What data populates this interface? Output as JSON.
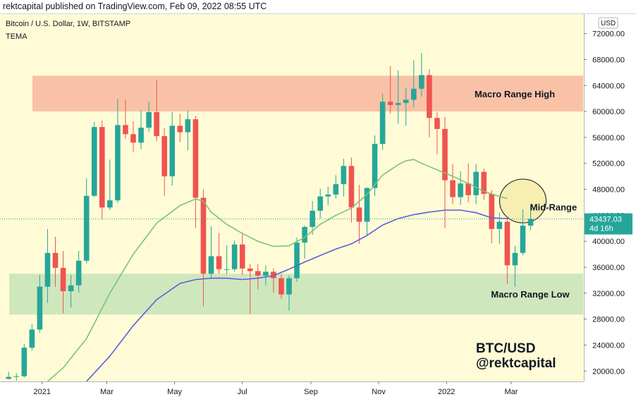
{
  "header": {
    "publisher_line": "rektcapital published on TradingView.com, Feb 09, 2022 08:55 UTC"
  },
  "legend": {
    "symbol_line": "Bitcoin / U.S. Dollar, 1W, BITSTAMP",
    "indicator": "TEMA"
  },
  "currency_button": "USD",
  "price_tag": {
    "price": "43437.03",
    "countdown": "4d 16h"
  },
  "watermark": {
    "line1": "BTC/USD",
    "line2": "@rektcapital"
  },
  "colors": {
    "background": "#fffbd6",
    "up": "#26a69a",
    "down": "#ef5350",
    "macro_high_zone": "#f9c2a6",
    "macro_low_zone": "#cfe7bd",
    "mid_range_circle": "#f5e9a6",
    "tema_fast": "#7dc27a",
    "tema_slow": "#5b5fe0",
    "price_tag": "#26a69a"
  },
  "chart_data": {
    "type": "candlestick",
    "interval": "1W",
    "ylim": [
      18400,
      75000
    ],
    "y_ticks": [
      20000,
      24000,
      28000,
      32000,
      36000,
      40000,
      44000,
      48000,
      52000,
      56000,
      60000,
      64000,
      68000,
      72000
    ],
    "y_tick_labels": [
      "20000.00",
      "24000.00",
      "28000.00",
      "32000.00",
      "36000.00",
      "40000.00",
      "44000.00",
      "48000.00",
      "52000.00",
      "56000.00",
      "60000.00",
      "64000.00",
      "68000.00",
      "72000.00"
    ],
    "x_labels": [
      {
        "label": "2021",
        "week": 4.3
      },
      {
        "label": "Mar",
        "week": 12.6
      },
      {
        "label": "May",
        "week": 21.3
      },
      {
        "label": "Jul",
        "week": 30.0
      },
      {
        "label": "Sep",
        "week": 38.8
      },
      {
        "label": "Nov",
        "week": 47.5
      },
      {
        "label": "2022",
        "week": 56.2
      },
      {
        "label": "Mar",
        "week": 64.5
      }
    ],
    "candles": [
      {
        "o": 18800,
        "h": 19900,
        "l": 18700,
        "c": 19100
      },
      {
        "o": 19100,
        "h": 19700,
        "l": 18500,
        "c": 19200
      },
      {
        "o": 19200,
        "h": 24200,
        "l": 19000,
        "c": 23600
      },
      {
        "o": 23600,
        "h": 27200,
        "l": 23200,
        "c": 26400
      },
      {
        "o": 26400,
        "h": 34800,
        "l": 25900,
        "c": 33000
      },
      {
        "o": 33000,
        "h": 41900,
        "l": 30500,
        "c": 38200
      },
      {
        "o": 38200,
        "h": 40700,
        "l": 33000,
        "c": 35900
      },
      {
        "o": 35900,
        "h": 38500,
        "l": 28900,
        "c": 32300
      },
      {
        "o": 32300,
        "h": 34800,
        "l": 29800,
        "c": 33200
      },
      {
        "o": 33200,
        "h": 38500,
        "l": 32100,
        "c": 37000
      },
      {
        "o": 37000,
        "h": 49700,
        "l": 36600,
        "c": 47000
      },
      {
        "o": 47000,
        "h": 58400,
        "l": 46800,
        "c": 57600
      },
      {
        "o": 57600,
        "h": 58600,
        "l": 43300,
        "c": 45200
      },
      {
        "o": 45200,
        "h": 52600,
        "l": 44800,
        "c": 46300
      },
      {
        "o": 46300,
        "h": 62000,
        "l": 45900,
        "c": 57900
      },
      {
        "o": 57900,
        "h": 61800,
        "l": 55800,
        "c": 56500
      },
      {
        "o": 56500,
        "h": 58500,
        "l": 53800,
        "c": 55200
      },
      {
        "o": 55200,
        "h": 60200,
        "l": 54200,
        "c": 57500
      },
      {
        "o": 57500,
        "h": 61500,
        "l": 56800,
        "c": 59900
      },
      {
        "o": 59900,
        "h": 64900,
        "l": 55400,
        "c": 56200
      },
      {
        "o": 56200,
        "h": 57400,
        "l": 47000,
        "c": 50000
      },
      {
        "o": 50000,
        "h": 59900,
        "l": 48600,
        "c": 57800
      },
      {
        "o": 57800,
        "h": 59600,
        "l": 55300,
        "c": 56800
      },
      {
        "o": 56800,
        "h": 60100,
        "l": 54000,
        "c": 58800
      },
      {
        "o": 58800,
        "h": 59300,
        "l": 42000,
        "c": 46700
      },
      {
        "o": 46700,
        "h": 48000,
        "l": 30000,
        "c": 35000
      },
      {
        "o": 35000,
        "h": 42300,
        "l": 34300,
        "c": 37700
      },
      {
        "o": 37700,
        "h": 41300,
        "l": 35000,
        "c": 35700
      },
      {
        "o": 35700,
        "h": 39400,
        "l": 34900,
        "c": 35700
      },
      {
        "o": 35700,
        "h": 40100,
        "l": 35300,
        "c": 39500
      },
      {
        "o": 39500,
        "h": 41300,
        "l": 34800,
        "c": 35800
      },
      {
        "o": 35800,
        "h": 36500,
        "l": 28800,
        "c": 35400
      },
      {
        "o": 35400,
        "h": 36500,
        "l": 32600,
        "c": 34700
      },
      {
        "o": 34700,
        "h": 36300,
        "l": 33200,
        "c": 35300
      },
      {
        "o": 35300,
        "h": 35800,
        "l": 32100,
        "c": 34300
      },
      {
        "o": 34300,
        "h": 34900,
        "l": 31100,
        "c": 31800
      },
      {
        "o": 31800,
        "h": 34700,
        "l": 29300,
        "c": 34300
      },
      {
        "o": 34300,
        "h": 40600,
        "l": 33800,
        "c": 39800
      },
      {
        "o": 39800,
        "h": 42400,
        "l": 37300,
        "c": 42200
      },
      {
        "o": 42200,
        "h": 46200,
        "l": 41000,
        "c": 44700
      },
      {
        "o": 44700,
        "h": 48100,
        "l": 43500,
        "c": 46900
      },
      {
        "o": 46900,
        "h": 48400,
        "l": 45600,
        "c": 47200
      },
      {
        "o": 47200,
        "h": 50200,
        "l": 46600,
        "c": 48800
      },
      {
        "o": 48800,
        "h": 52700,
        "l": 46900,
        "c": 51600
      },
      {
        "o": 51600,
        "h": 52900,
        "l": 42900,
        "c": 45200
      },
      {
        "o": 45200,
        "h": 48700,
        "l": 39600,
        "c": 43000
      },
      {
        "o": 43000,
        "h": 48300,
        "l": 40900,
        "c": 48200
      },
      {
        "o": 48200,
        "h": 56300,
        "l": 47000,
        "c": 55000
      },
      {
        "o": 55000,
        "h": 62700,
        "l": 54100,
        "c": 61500
      },
      {
        "o": 61500,
        "h": 67000,
        "l": 59700,
        "c": 61000
      },
      {
        "o": 61000,
        "h": 66300,
        "l": 58100,
        "c": 61300
      },
      {
        "o": 61300,
        "h": 63700,
        "l": 57800,
        "c": 61800
      },
      {
        "o": 61800,
        "h": 67900,
        "l": 60600,
        "c": 63500
      },
      {
        "o": 63500,
        "h": 69000,
        "l": 62300,
        "c": 65600
      },
      {
        "o": 65600,
        "h": 66500,
        "l": 56000,
        "c": 59000
      },
      {
        "o": 59000,
        "h": 59900,
        "l": 53400,
        "c": 57300
      },
      {
        "o": 57300,
        "h": 59200,
        "l": 42000,
        "c": 49400
      },
      {
        "o": 49400,
        "h": 51900,
        "l": 45700,
        "c": 46800
      },
      {
        "o": 46800,
        "h": 50800,
        "l": 45600,
        "c": 48900
      },
      {
        "o": 48900,
        "h": 52000,
        "l": 46000,
        "c": 47100
      },
      {
        "o": 47100,
        "h": 51900,
        "l": 45700,
        "c": 50700
      },
      {
        "o": 50700,
        "h": 51200,
        "l": 46400,
        "c": 47300
      },
      {
        "o": 47300,
        "h": 47900,
        "l": 39700,
        "c": 41900
      },
      {
        "o": 41900,
        "h": 44400,
        "l": 39600,
        "c": 43000
      },
      {
        "o": 43000,
        "h": 43600,
        "l": 33400,
        "c": 36300
      },
      {
        "o": 36300,
        "h": 39300,
        "l": 33000,
        "c": 38200
      },
      {
        "o": 38200,
        "h": 44900,
        "l": 37800,
        "c": 42400
      },
      {
        "o": 42400,
        "h": 45700,
        "l": 41700,
        "c": 43437.03
      }
    ],
    "series": [
      {
        "type": "line",
        "points": [
          [
            5,
            18400
          ],
          [
            7,
            20500
          ],
          [
            10,
            25000
          ],
          [
            13,
            32000
          ],
          [
            16,
            38000
          ],
          [
            19,
            42800
          ],
          [
            22,
            45500
          ],
          [
            24,
            46500
          ],
          [
            25,
            46200
          ],
          [
            26,
            44500
          ],
          [
            28,
            42600
          ],
          [
            30,
            41200
          ],
          [
            32,
            40000
          ],
          [
            34,
            39200
          ],
          [
            36,
            39300
          ],
          [
            38,
            40600
          ],
          [
            40,
            42600
          ],
          [
            42,
            44000
          ],
          [
            44,
            45100
          ],
          [
            46,
            47200
          ],
          [
            48,
            50200
          ],
          [
            50,
            51800
          ],
          [
            51,
            52400
          ],
          [
            52,
            52600
          ],
          [
            53,
            52000
          ],
          [
            55,
            51000
          ],
          [
            57,
            50000
          ],
          [
            59,
            48900
          ],
          [
            61,
            47700
          ],
          [
            63,
            46900
          ],
          [
            64,
            46600
          ]
        ]
      },
      {
        "type": "line",
        "points": [
          [
            10,
            18400
          ],
          [
            13,
            22300
          ],
          [
            16,
            27000
          ],
          [
            19,
            31000
          ],
          [
            22,
            33500
          ],
          [
            24,
            34100
          ],
          [
            26,
            34300
          ],
          [
            28,
            34300
          ],
          [
            30,
            34100
          ],
          [
            32,
            34300
          ],
          [
            34,
            34700
          ],
          [
            36,
            35700
          ],
          [
            38,
            36800
          ],
          [
            40,
            37800
          ],
          [
            42,
            38800
          ],
          [
            44,
            39600
          ],
          [
            46,
            40900
          ],
          [
            48,
            42500
          ],
          [
            50,
            43500
          ],
          [
            52,
            44100
          ],
          [
            54,
            44500
          ],
          [
            56,
            44800
          ],
          [
            58,
            44800
          ],
          [
            60,
            44400
          ],
          [
            62,
            43600
          ],
          [
            64,
            43500
          ]
        ]
      }
    ],
    "zones": [
      {
        "label": "Macro Range High",
        "y0": 60000,
        "y1": 65500
      },
      {
        "label": "Macro Range Low",
        "y0": 28700,
        "y1": 35000
      }
    ],
    "annotations": [
      {
        "text": "Mid-Range",
        "week": 64.5,
        "price": 45300
      }
    ],
    "current_price": 43437.03
  }
}
